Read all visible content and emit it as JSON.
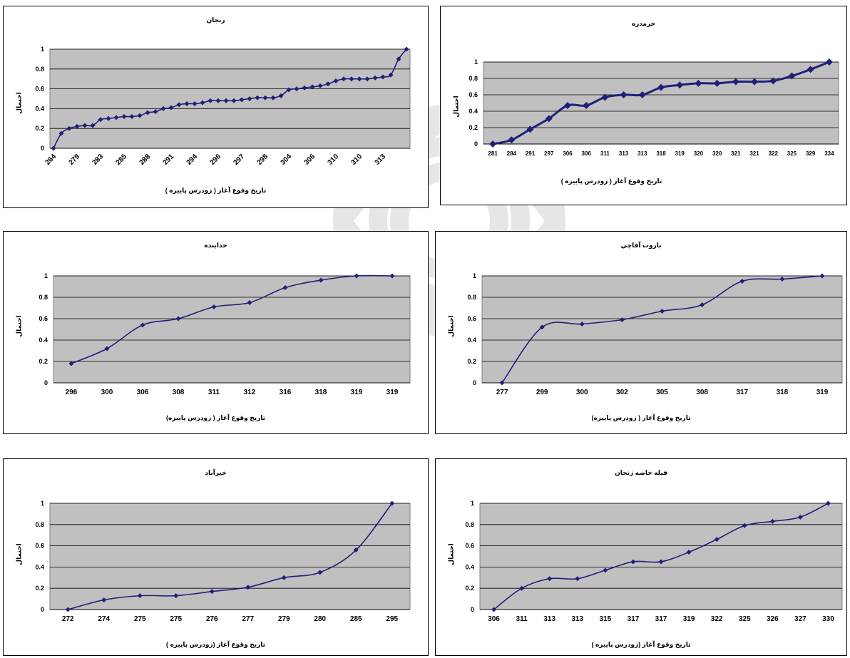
{
  "series_color": "#1f1f7a",
  "plot_bg": "#c0c0c0",
  "chart_data": [
    {
      "type": "line",
      "title": "زنجان",
      "xlabel": "تاریخ وقوع آغاز ( زودرس پاییزه )",
      "ylabel": "احتمال",
      "ylim": [
        0,
        1
      ],
      "yticks": [
        "0",
        "0.2",
        "0.4",
        "0.6",
        "0.8",
        "1"
      ],
      "tick_labels": [
        "264",
        "279",
        "283",
        "285",
        "288",
        "291",
        "294",
        "296",
        "297",
        "298",
        "304",
        "306",
        "310",
        "310",
        "313"
      ],
      "values": [
        0,
        0.15,
        0.2,
        0.22,
        0.23,
        0.23,
        0.29,
        0.3,
        0.31,
        0.32,
        0.32,
        0.33,
        0.36,
        0.37,
        0.4,
        0.41,
        0.44,
        0.45,
        0.45,
        0.46,
        0.48,
        0.48,
        0.48,
        0.48,
        0.49,
        0.5,
        0.51,
        0.51,
        0.51,
        0.53,
        0.59,
        0.6,
        0.61,
        0.62,
        0.63,
        0.65,
        0.68,
        0.7,
        0.7,
        0.7,
        0.7,
        0.71,
        0.72,
        0.74,
        0.9,
        1
      ]
    },
    {
      "type": "line",
      "title": "خرمدره",
      "xlabel": "تاریخ وقوع آغاز ( زودرس پاییزه )",
      "ylabel": "احتمال",
      "ylim": [
        0,
        1
      ],
      "yticks": [
        "0",
        "0.2",
        "0.4",
        "0.6",
        "0.8",
        "1"
      ],
      "tick_labels": [
        "281",
        "284",
        "291",
        "297",
        "306",
        "306",
        "311",
        "313",
        "313",
        "318",
        "319",
        "320",
        "320",
        "321",
        "321",
        "322",
        "325",
        "329",
        "334"
      ],
      "values": [
        0,
        0.05,
        0.18,
        0.31,
        0.47,
        0.47,
        0.57,
        0.6,
        0.6,
        0.69,
        0.72,
        0.74,
        0.74,
        0.76,
        0.76,
        0.77,
        0.83,
        0.91,
        1
      ]
    },
    {
      "type": "line",
      "title": "خدابنده",
      "xlabel": "تاریخ وقوع آغاز ( زودرس پاییزه)",
      "ylabel": "احتمال",
      "ylim": [
        0,
        1
      ],
      "yticks": [
        "0",
        "0.2",
        "0.4",
        "0.6",
        "0.8",
        "1"
      ],
      "tick_labels": [
        "296",
        "300",
        "306",
        "308",
        "311",
        "312",
        "316",
        "318",
        "319",
        "319"
      ],
      "values": [
        0.18,
        0.32,
        0.54,
        0.6,
        0.71,
        0.75,
        0.89,
        0.96,
        1,
        1
      ]
    },
    {
      "type": "line",
      "title": "باروت آقاچي",
      "xlabel": "تاریخ وقوع آغاز ( زودرس پاییزه)",
      "ylabel": "احتمال",
      "ylim": [
        0,
        1
      ],
      "yticks": [
        "0",
        "0.2",
        "0.4",
        "0.6",
        "0.8",
        "1"
      ],
      "tick_labels": [
        "277",
        "299",
        "300",
        "302",
        "305",
        "308",
        "317",
        "318",
        "319"
      ],
      "values": [
        0,
        0.52,
        0.55,
        0.59,
        0.67,
        0.73,
        0.95,
        0.97,
        1
      ]
    },
    {
      "type": "line",
      "title": "خیرآباد",
      "xlabel": "تاریخ وقوع آغاز (زودرس پاییزه )",
      "ylabel": "احتمال",
      "ylim": [
        0,
        1
      ],
      "yticks": [
        "0",
        "0.2",
        "0.4",
        "0.6",
        "0.8",
        "1"
      ],
      "tick_labels": [
        "272",
        "274",
        "275",
        "275",
        "276",
        "277",
        "279",
        "280",
        "285",
        "295"
      ],
      "values": [
        0,
        0.09,
        0.13,
        0.13,
        0.17,
        0.21,
        0.3,
        0.35,
        0.56,
        1
      ]
    },
    {
      "type": "line",
      "title": "فیله خاصه زنجان",
      "xlabel": "تاریخ وقوع آغاز (زودرس پاییزه )",
      "ylabel": "احتمال",
      "ylim": [
        0,
        1
      ],
      "yticks": [
        "0",
        "0.2",
        "0.4",
        "0.6",
        "0.8",
        "1"
      ],
      "tick_labels": [
        "306",
        "311",
        "313",
        "313",
        "315",
        "317",
        "317",
        "319",
        "322",
        "325",
        "326",
        "327",
        "330"
      ],
      "values": [
        0,
        0.2,
        0.29,
        0.29,
        0.37,
        0.45,
        0.45,
        0.54,
        0.66,
        0.79,
        0.83,
        0.87,
        1
      ]
    }
  ]
}
